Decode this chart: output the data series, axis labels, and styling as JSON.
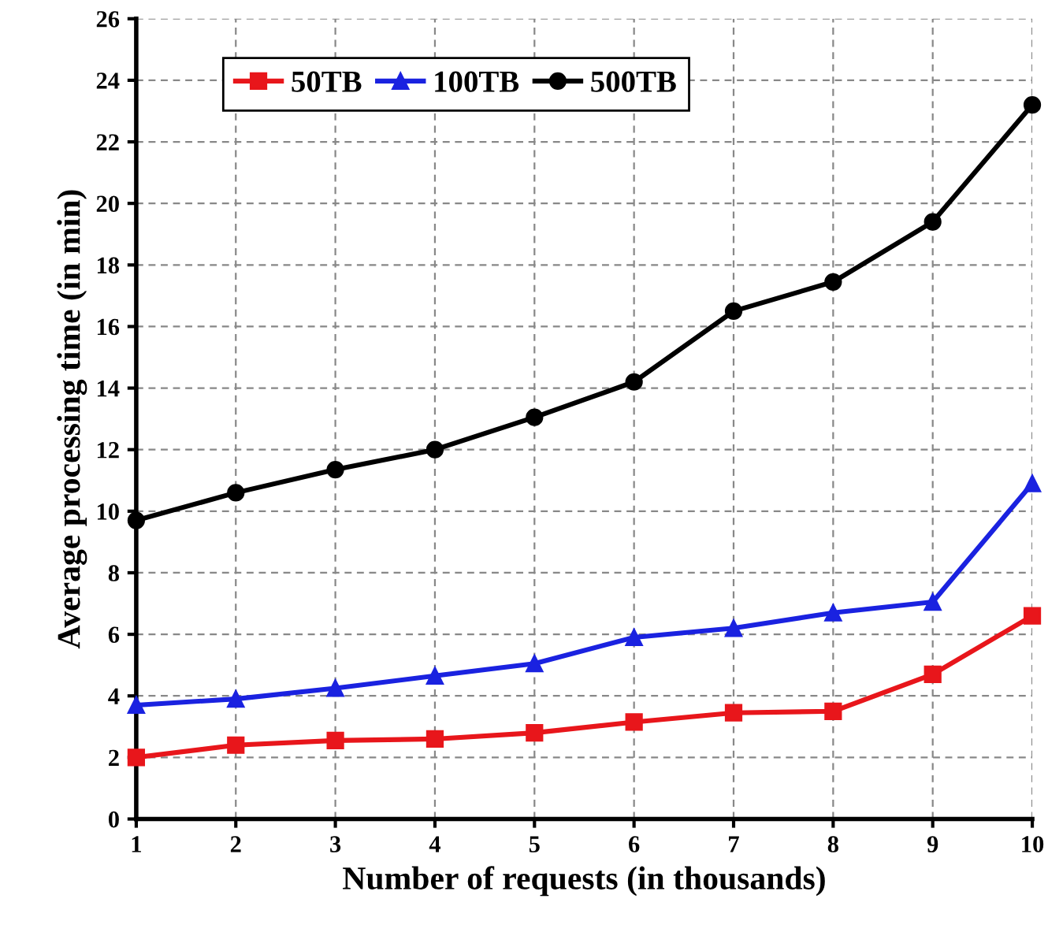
{
  "chart_data": {
    "type": "line",
    "xlabel": "Number of requests (in thousands)",
    "ylabel": "Average processing time (in min)",
    "x": [
      1,
      2,
      3,
      4,
      5,
      6,
      7,
      8,
      9,
      10
    ],
    "series": [
      {
        "name": "50TB",
        "color": "#e8161b",
        "marker": "square",
        "values": [
          2.0,
          2.4,
          2.55,
          2.6,
          2.8,
          3.15,
          3.45,
          3.5,
          4.7,
          6.6
        ]
      },
      {
        "name": "100TB",
        "color": "#1a22e0",
        "marker": "triangle",
        "values": [
          3.7,
          3.9,
          4.25,
          4.65,
          5.05,
          5.9,
          6.2,
          6.7,
          7.05,
          10.9
        ]
      },
      {
        "name": "500TB",
        "color": "#000000",
        "marker": "circle",
        "values": [
          9.7,
          10.6,
          11.35,
          12.0,
          13.05,
          14.2,
          16.5,
          17.45,
          19.4,
          23.2
        ]
      }
    ],
    "xlim": [
      1,
      10
    ],
    "xticks": [
      1,
      2,
      3,
      4,
      5,
      6,
      7,
      8,
      9,
      10
    ],
    "ylim": [
      0,
      26
    ],
    "yticks": [
      0,
      2,
      4,
      6,
      8,
      10,
      12,
      14,
      16,
      18,
      20,
      22,
      24,
      26
    ],
    "grid": true,
    "legend": "top left",
    "line_style": "solid"
  }
}
